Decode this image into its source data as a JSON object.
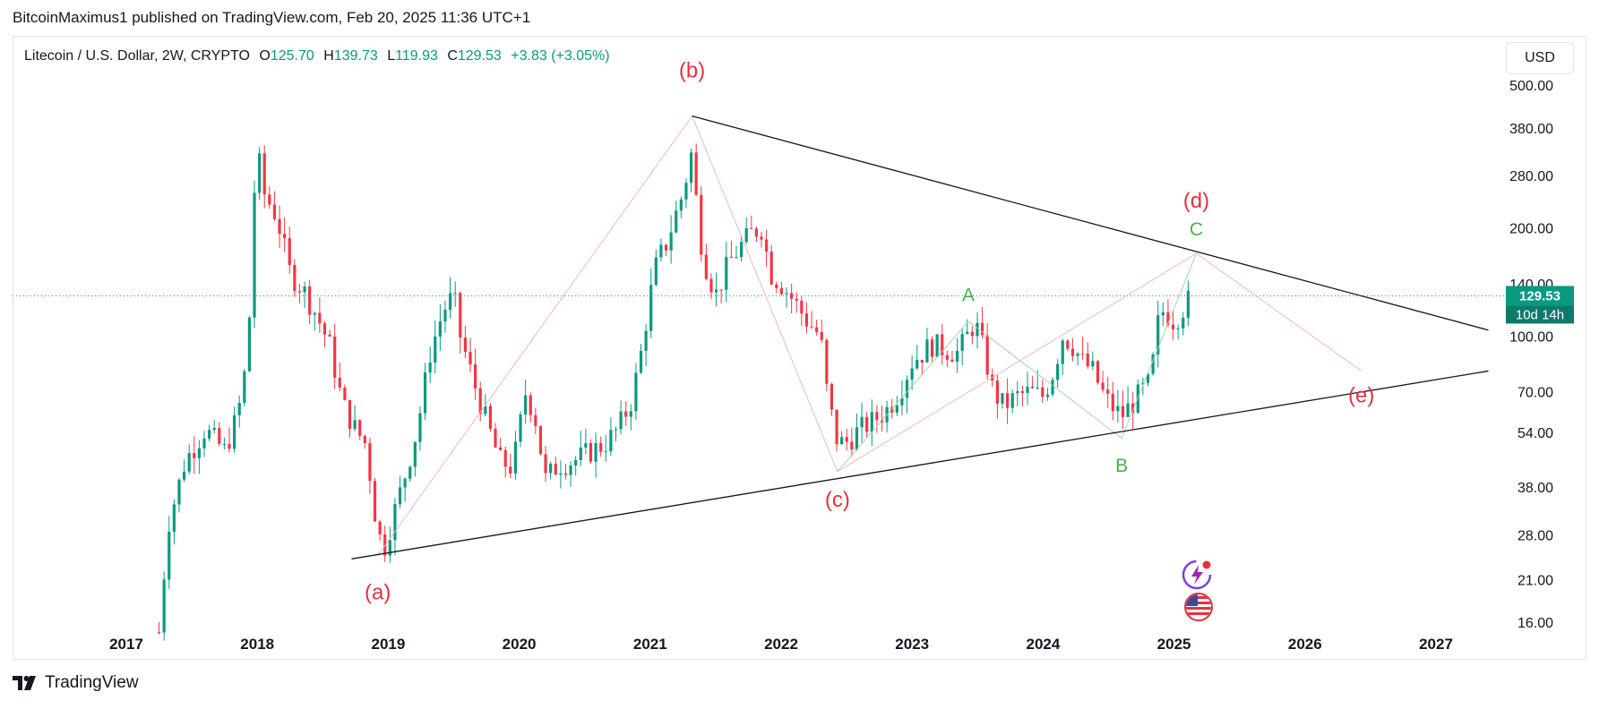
{
  "publisher_line": "BitcoinMaximus1 published on TradingView.com, Feb 20, 2025 11:36 UTC+1",
  "legend": {
    "symbol": "Litecoin / U.S. Dollar, 2W, CRYPTO",
    "open_label": "O",
    "open": "125.70",
    "high_label": "H",
    "high": "139.73",
    "low_label": "L",
    "low": "119.93",
    "close_label": "C",
    "close": "129.53",
    "change": "+3.83 (+3.05%)"
  },
  "currency_button": "USD",
  "price_tag": {
    "price": "129.53",
    "countdown": "10d 14h"
  },
  "footer_brand": "TradingView",
  "colors": {
    "up": "#089981",
    "down": "#f23645",
    "wave_red": "#e0333f",
    "wave_green": "#4caf50",
    "line": "#131722",
    "countdown_bg": "#0d7a6a"
  },
  "chart_data": {
    "type": "candlestick",
    "title": "Litecoin / U.S. Dollar, 2W, CRYPTO",
    "y_scale": "log",
    "ylim": [
      16,
      560
    ],
    "y_ticks": [
      "500.00",
      "380.00",
      "280.00",
      "200.00",
      "140.00",
      "100.00",
      "70.00",
      "54.00",
      "38.00",
      "28.00",
      "21.00",
      "16.00"
    ],
    "y_tick_values": [
      500,
      380,
      280,
      200,
      140,
      100,
      70,
      54,
      38,
      28,
      21,
      16
    ],
    "xlim": [
      2016.5,
      2027.45
    ],
    "x_ticks": [
      "2017",
      "2018",
      "2019",
      "2020",
      "2021",
      "2022",
      "2023",
      "2024",
      "2025",
      "2026",
      "2027"
    ],
    "x_tick_values": [
      2017,
      2018,
      2019,
      2020,
      2021,
      2022,
      2023,
      2024,
      2025,
      2026,
      2027
    ],
    "last_price": 129.53,
    "price_path": [
      [
        2017.25,
        15
      ],
      [
        2017.32,
        30
      ],
      [
        2017.45,
        45
      ],
      [
        2017.6,
        55
      ],
      [
        2017.75,
        48
      ],
      [
        2017.85,
        60
      ],
      [
        2017.93,
        90
      ],
      [
        2017.97,
        230
      ],
      [
        2018.0,
        330
      ],
      [
        2018.05,
        250
      ],
      [
        2018.15,
        215
      ],
      [
        2018.25,
        150
      ],
      [
        2018.35,
        135
      ],
      [
        2018.45,
        115
      ],
      [
        2018.55,
        95
      ],
      [
        2018.65,
        65
      ],
      [
        2018.75,
        55
      ],
      [
        2018.83,
        50
      ],
      [
        2018.9,
        32
      ],
      [
        2018.96,
        25
      ],
      [
        2019.02,
        30
      ],
      [
        2019.12,
        40
      ],
      [
        2019.22,
        55
      ],
      [
        2019.32,
        90
      ],
      [
        2019.42,
        118
      ],
      [
        2019.5,
        130
      ],
      [
        2019.55,
        100
      ],
      [
        2019.65,
        75
      ],
      [
        2019.75,
        58
      ],
      [
        2019.85,
        45
      ],
      [
        2019.95,
        43
      ],
      [
        2020.05,
        70
      ],
      [
        2020.12,
        60
      ],
      [
        2020.2,
        40
      ],
      [
        2020.3,
        44
      ],
      [
        2020.42,
        45
      ],
      [
        2020.55,
        48
      ],
      [
        2020.65,
        50
      ],
      [
        2020.75,
        55
      ],
      [
        2020.85,
        65
      ],
      [
        2020.92,
        85
      ],
      [
        2021.0,
        130
      ],
      [
        2021.05,
        160
      ],
      [
        2021.12,
        180
      ],
      [
        2021.18,
        210
      ],
      [
        2021.25,
        250
      ],
      [
        2021.32,
        330
      ],
      [
        2021.37,
        200
      ],
      [
        2021.42,
        160
      ],
      [
        2021.5,
        130
      ],
      [
        2021.6,
        160
      ],
      [
        2021.7,
        180
      ],
      [
        2021.78,
        195
      ],
      [
        2021.85,
        200
      ],
      [
        2021.92,
        150
      ],
      [
        2022.0,
        140
      ],
      [
        2022.1,
        125
      ],
      [
        2022.2,
        110
      ],
      [
        2022.3,
        100
      ],
      [
        2022.35,
        70
      ],
      [
        2022.42,
        52
      ],
      [
        2022.48,
        50
      ],
      [
        2022.6,
        55
      ],
      [
        2022.7,
        58
      ],
      [
        2022.8,
        62
      ],
      [
        2022.9,
        70
      ],
      [
        2023.0,
        85
      ],
      [
        2023.08,
        90
      ],
      [
        2023.15,
        95
      ],
      [
        2023.25,
        92
      ],
      [
        2023.35,
        90
      ],
      [
        2023.42,
        100
      ],
      [
        2023.48,
        110
      ],
      [
        2023.55,
        90
      ],
      [
        2023.62,
        70
      ],
      [
        2023.7,
        64
      ],
      [
        2023.8,
        68
      ],
      [
        2023.9,
        70
      ],
      [
        2024.0,
        68
      ],
      [
        2024.08,
        80
      ],
      [
        2024.15,
        100
      ],
      [
        2024.22,
        95
      ],
      [
        2024.3,
        85
      ],
      [
        2024.38,
        80
      ],
      [
        2024.45,
        70
      ],
      [
        2024.52,
        64
      ],
      [
        2024.6,
        60
      ],
      [
        2024.68,
        65
      ],
      [
        2024.75,
        70
      ],
      [
        2024.82,
        75
      ],
      [
        2024.88,
        110
      ],
      [
        2024.93,
        120
      ],
      [
        2024.98,
        110
      ],
      [
        2025.04,
        115
      ],
      [
        2025.1,
        125
      ],
      [
        2025.14,
        129.53
      ]
    ],
    "annotations": [
      {
        "label": "(a)",
        "x": 2018.92,
        "y": 18.5,
        "color": "red"
      },
      {
        "label": "(b)",
        "x": 2021.32,
        "y": 525,
        "color": "red"
      },
      {
        "label": "(c)",
        "x": 2022.43,
        "y": 33.5,
        "color": "red"
      },
      {
        "label": "(d)",
        "x": 2025.17,
        "y": 228,
        "color": "red"
      },
      {
        "label": "(e)",
        "x": 2026.43,
        "y": 65.5,
        "color": "red"
      },
      {
        "label": "A",
        "x": 2023.43,
        "y": 125,
        "color": "green"
      },
      {
        "label": "B",
        "x": 2024.6,
        "y": 42,
        "color": "green"
      },
      {
        "label": "C",
        "x": 2025.17,
        "y": 191,
        "color": "green"
      }
    ],
    "trendlines": [
      {
        "from": [
          2018.72,
          24
        ],
        "to": [
          2027.4,
          80
        ]
      },
      {
        "from": [
          2021.32,
          410
        ],
        "to": [
          2027.4,
          104
        ]
      }
    ],
    "wave_path_red": [
      [
        2018.92,
        24.5
      ],
      [
        2021.32,
        410
      ],
      [
        2022.43,
        42
      ],
      [
        2025.17,
        170
      ],
      [
        2026.43,
        80
      ]
    ],
    "wave_path_green": [
      [
        2022.43,
        42
      ],
      [
        2023.43,
        110
      ],
      [
        2024.6,
        52
      ],
      [
        2025.17,
        170
      ]
    ],
    "y_ticks_label": "",
    "x_label": "",
    "y_label": ""
  }
}
